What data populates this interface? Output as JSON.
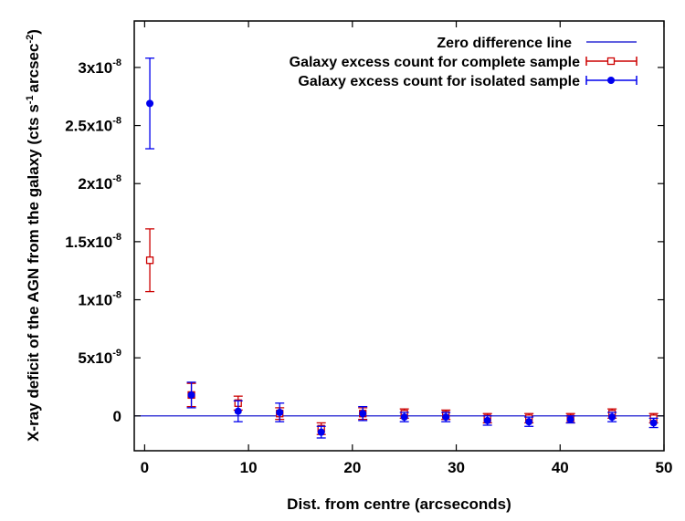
{
  "chart_data": {
    "type": "scatter",
    "title": "",
    "xlabel": "Dist. from centre (arcseconds)",
    "ylabel": {
      "main": "X-ray deficit of the AGN from the galaxy (cts s",
      "exp1": "-1",
      "mid": "arcsec",
      "exp2": "-2",
      "end": ")"
    },
    "xlim": [
      -1,
      50
    ],
    "ylim": [
      -3e-09,
      3.4e-08
    ],
    "x_ticks": [
      {
        "value": 0,
        "label": "0"
      },
      {
        "value": 10,
        "label": "10"
      },
      {
        "value": 20,
        "label": "20"
      },
      {
        "value": 30,
        "label": "30"
      },
      {
        "value": 40,
        "label": "40"
      },
      {
        "value": 50,
        "label": "50"
      }
    ],
    "y_ticks": [
      {
        "value": 0,
        "mant": "0",
        "exp": ""
      },
      {
        "value": 5e-09,
        "mant": "5x10",
        "exp": "-9"
      },
      {
        "value": 1e-08,
        "mant": "1x10",
        "exp": "-8"
      },
      {
        "value": 1.5e-08,
        "mant": "1.5x10",
        "exp": "-8"
      },
      {
        "value": 2e-08,
        "mant": "2x10",
        "exp": "-8"
      },
      {
        "value": 2.5e-08,
        "mant": "2.5x10",
        "exp": "-8"
      },
      {
        "value": 3e-08,
        "mant": "3x10",
        "exp": "-8"
      }
    ],
    "legend_position": "top-right",
    "series": [
      {
        "name": "Zero difference line",
        "kind": "line",
        "color": "#0000cc",
        "y": 0
      },
      {
        "name": "Galaxy excess count for complete sample",
        "kind": "errorbar",
        "marker": "open-square",
        "color": "#cc0000",
        "points": [
          {
            "x": 0.5,
            "y": 1.34e-08,
            "err": 2.7e-09
          },
          {
            "x": 4.5,
            "y": 1.8e-09,
            "err": 1e-09
          },
          {
            "x": 9,
            "y": 1.1e-09,
            "err": 6e-10
          },
          {
            "x": 13,
            "y": 2e-10,
            "err": 5e-10
          },
          {
            "x": 17,
            "y": -1.1e-09,
            "err": 5e-10
          },
          {
            "x": 21,
            "y": 2e-10,
            "err": 5e-10
          },
          {
            "x": 25,
            "y": 2e-10,
            "err": 4e-10
          },
          {
            "x": 29,
            "y": 1e-10,
            "err": 4e-10
          },
          {
            "x": 33,
            "y": -2e-10,
            "err": 4e-10
          },
          {
            "x": 37,
            "y": -2e-10,
            "err": 4e-10
          },
          {
            "x": 41,
            "y": -2e-10,
            "err": 4e-10
          },
          {
            "x": 45,
            "y": 2e-10,
            "err": 4e-10
          },
          {
            "x": 49,
            "y": -2e-10,
            "err": 4e-10
          }
        ]
      },
      {
        "name": "Galaxy excess count for isolated sample",
        "kind": "errorbar",
        "marker": "filled-circle",
        "color": "#0000ee",
        "points": [
          {
            "x": 0.5,
            "y": 2.69e-08,
            "err": 3.9e-09
          },
          {
            "x": 4.5,
            "y": 1.8e-09,
            "err": 1.1e-09
          },
          {
            "x": 9,
            "y": 4e-10,
            "err": 9e-10
          },
          {
            "x": 13,
            "y": 3e-10,
            "err": 8e-10
          },
          {
            "x": 17,
            "y": -1.4e-09,
            "err": 5e-10
          },
          {
            "x": 21,
            "y": 2e-10,
            "err": 6e-10
          },
          {
            "x": 25,
            "y": -1e-10,
            "err": 4e-10
          },
          {
            "x": 29,
            "y": -1e-10,
            "err": 4e-10
          },
          {
            "x": 33,
            "y": -4e-10,
            "err": 4e-10
          },
          {
            "x": 37,
            "y": -5e-10,
            "err": 4e-10
          },
          {
            "x": 41,
            "y": -3e-10,
            "err": 3e-10
          },
          {
            "x": 45,
            "y": -1e-10,
            "err": 4e-10
          },
          {
            "x": 49,
            "y": -6e-10,
            "err": 4e-10
          }
        ]
      }
    ]
  }
}
